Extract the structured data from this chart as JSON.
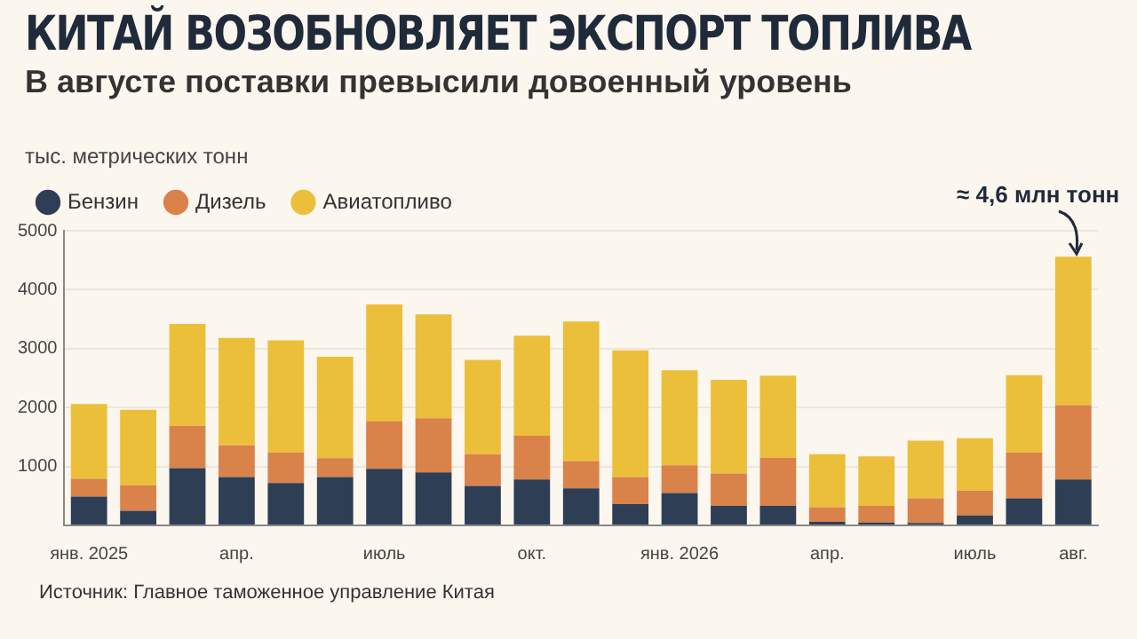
{
  "chart_data": {
    "type": "bar",
    "stacked": true,
    "title": "КИТАЙ ВОЗОБНОВЛЯЕТ ЭКСПОРТ ТОПЛИВА",
    "subtitle": "В августе поставки превысили довоенный уровень",
    "ylabel": "тыс. метрических тонн",
    "categories": [
      "янв. 2025",
      null,
      null,
      "апр.",
      null,
      null,
      "июль",
      null,
      null,
      "окт.",
      null,
      null,
      "янв. 2026",
      null,
      null,
      "апр.",
      null,
      null,
      "июль",
      null,
      "авг."
    ],
    "series": [
      {
        "name": "Бензин",
        "color": "#2e3e55",
        "values": [
          490,
          250,
          970,
          820,
          720,
          820,
          960,
          900,
          670,
          780,
          630,
          360,
          550,
          330,
          330,
          60,
          50,
          40,
          170,
          460,
          780
        ]
      },
      {
        "name": "Дизель",
        "color": "#d9824a",
        "values": [
          300,
          430,
          720,
          540,
          520,
          320,
          810,
          920,
          540,
          740,
          460,
          460,
          470,
          550,
          820,
          250,
          280,
          420,
          420,
          780,
          1260
        ]
      },
      {
        "name": "Авиатопливо",
        "color": "#ecbf3a",
        "values": [
          1270,
          1280,
          1730,
          1820,
          1900,
          1720,
          1980,
          1760,
          1600,
          1700,
          2370,
          2150,
          1610,
          1590,
          1390,
          900,
          840,
          980,
          890,
          1310,
          2520
        ]
      }
    ],
    "ylim": [
      0,
      5000
    ],
    "yticks": [
      {
        "value": 0,
        "label": null
      },
      1000,
      2000,
      3000,
      4000,
      5000
    ],
    "grid": "y",
    "legend": "top left",
    "annotations": [
      {
        "text": "≈ 4,6 млн тонн",
        "x": "авг.",
        "y": 4560
      },
      "Источник: Главное таможенное управление Китая"
    ]
  }
}
